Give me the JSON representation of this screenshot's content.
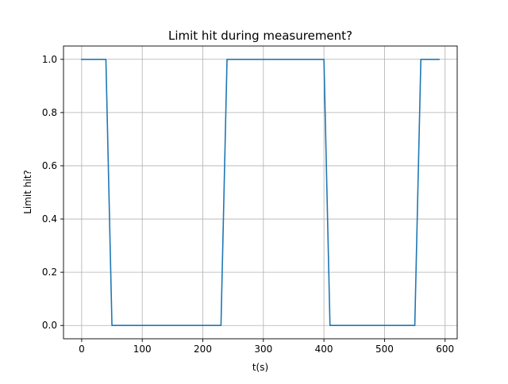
{
  "chart_data": {
    "type": "line",
    "title": "Limit hit during measurement?",
    "xlabel": "t(s)",
    "ylabel": "Limit hit?",
    "xlim": [
      -30,
      620
    ],
    "ylim": [
      -0.05,
      1.05
    ],
    "x_ticks": [
      0,
      100,
      200,
      300,
      400,
      500,
      600
    ],
    "y_ticks": [
      0.0,
      0.2,
      0.4,
      0.6,
      0.8,
      1.0
    ],
    "x_tick_labels": [
      "0",
      "100",
      "200",
      "300",
      "400",
      "500",
      "600"
    ],
    "y_tick_labels": [
      "0.0",
      "0.2",
      "0.4",
      "0.6",
      "0.8",
      "1.0"
    ],
    "grid": true,
    "legend": false,
    "series": [
      {
        "color": "#1f77b4",
        "x": [
          0,
          10,
          20,
          30,
          40,
          50,
          60,
          70,
          80,
          90,
          100,
          110,
          120,
          130,
          140,
          150,
          160,
          170,
          180,
          190,
          200,
          210,
          220,
          230,
          240,
          250,
          260,
          270,
          280,
          290,
          300,
          310,
          320,
          330,
          340,
          350,
          360,
          370,
          380,
          390,
          400,
          410,
          420,
          430,
          440,
          450,
          460,
          470,
          480,
          490,
          500,
          510,
          520,
          530,
          540,
          550,
          560,
          570,
          580,
          590
        ],
        "y": [
          1,
          1,
          1,
          1,
          1,
          0,
          0,
          0,
          0,
          0,
          0,
          0,
          0,
          0,
          0,
          0,
          0,
          0,
          0,
          0,
          0,
          0,
          0,
          0,
          1,
          1,
          1,
          1,
          1,
          1,
          1,
          1,
          1,
          1,
          1,
          1,
          1,
          1,
          1,
          1,
          1,
          0,
          0,
          0,
          0,
          0,
          0,
          0,
          0,
          0,
          0,
          0,
          0,
          0,
          0,
          0,
          1,
          1,
          1,
          1
        ]
      }
    ]
  }
}
